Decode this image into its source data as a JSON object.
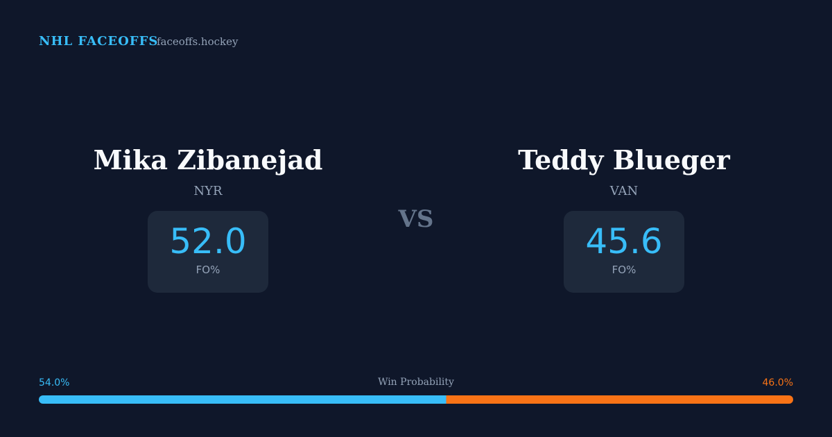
{
  "header": {
    "title": "NHL FACEOFFS",
    "site": "faceoffs.hockey"
  },
  "players": [
    {
      "name": "Mika Zibanejad",
      "team": "NYR",
      "stat": "52.0",
      "stat_label": "FO%"
    },
    {
      "name": "Teddy Blueger",
      "team": "VAN",
      "stat": "45.6",
      "stat_label": "FO%"
    }
  ],
  "versus": "VS",
  "win_probability": {
    "label": "Win Probability",
    "values": [
      54.0,
      46.0
    ],
    "value_labels": [
      "54.0%",
      "46.0%"
    ],
    "colors": [
      "#38bdf8",
      "#f97316"
    ]
  }
}
